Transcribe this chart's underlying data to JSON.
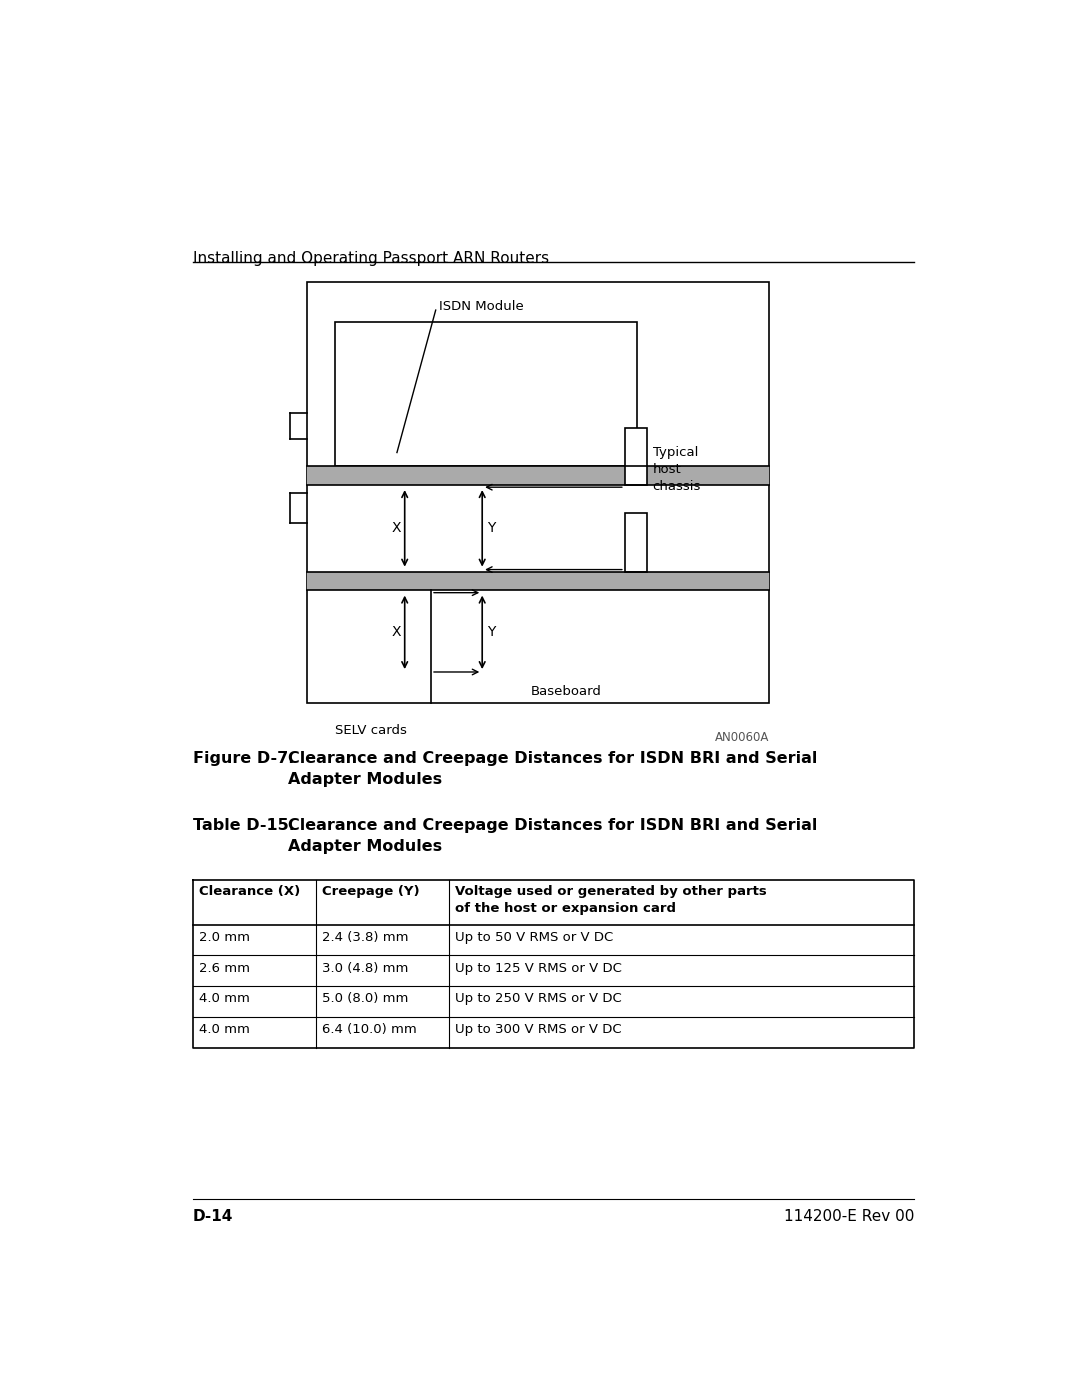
{
  "page_header": "Installing and Operating Passport ARN Routers",
  "figure_label": "Figure D-7.",
  "figure_title": "Clearance and Creepage Distances for ISDN BRI and Serial\nAdapter Modules",
  "table_label": "Table D-15.",
  "table_title": "Clearance and Creepage Distances for ISDN BRI and Serial\nAdapter Modules",
  "figure_code": "AN0060A",
  "col_headers": [
    "Clearance (X)",
    "Creepage (Y)",
    "Voltage used or generated by other parts\nof the host or expansion card"
  ],
  "table_rows": [
    [
      "2.0 mm",
      "2.4 (3.8) mm",
      "Up to 50 V RMS or V DC"
    ],
    [
      "2.6 mm",
      "3.0 (4.8) mm",
      "Up to 125 V RMS or V DC"
    ],
    [
      "4.0 mm",
      "5.0 (8.0) mm",
      "Up to 250 V RMS or V DC"
    ],
    [
      "4.0 mm",
      "6.4 (10.0) mm",
      "Up to 300 V RMS or V DC"
    ]
  ],
  "footer_left": "D-14",
  "footer_right": "114200-E Rev 00",
  "bg_color": "#ffffff",
  "text_color": "#000000",
  "diagram_labels": {
    "isdn_module": "ISDN Module",
    "typical_host": "Typical\nhost\nchassis",
    "baseboard": "Baseboard",
    "selv_cards": "SELV cards",
    "x_label": "X",
    "y_label": "Y"
  }
}
